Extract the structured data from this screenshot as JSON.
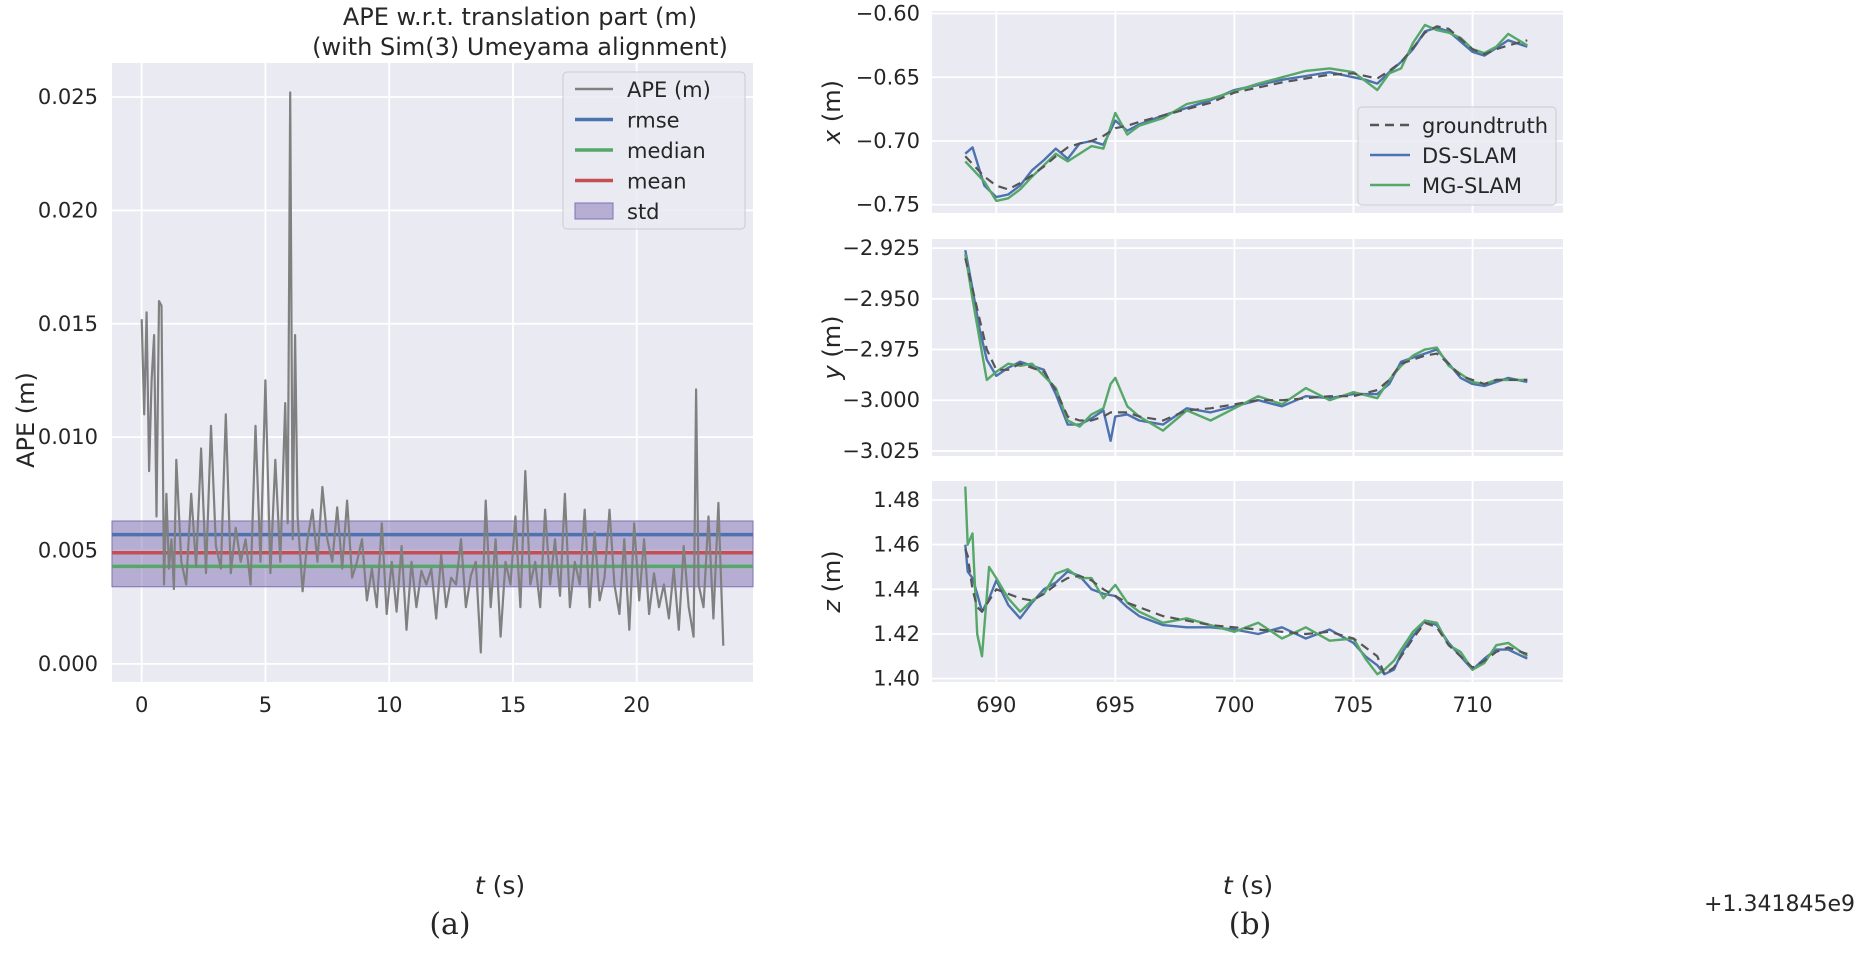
{
  "figure": {
    "panel_a_label": "(a)",
    "panel_b_label": "(b)"
  },
  "chart_data": [
    {
      "type": "line",
      "title": "APE w.r.t. translation part (m)",
      "subtitle": "(with Sim(3) Umeyama alignment)",
      "xlabel_italic": "t",
      "xlabel_unit": " (s)",
      "ylabel": "APE (m)",
      "xlim": [
        -1.2,
        24.7
      ],
      "ylim": [
        -0.0008,
        0.0265
      ],
      "x_ticks": [
        0,
        5,
        10,
        15,
        20
      ],
      "y_ticks": [
        0.0,
        0.005,
        0.01,
        0.015,
        0.02,
        0.025
      ],
      "y_tick_labels": [
        "0.000",
        "0.005",
        "0.010",
        "0.015",
        "0.020",
        "0.025"
      ],
      "grid": true,
      "legend_position": "top-right",
      "legend": [
        "APE (m)",
        "rmse",
        "median",
        "mean",
        "std"
      ],
      "colors": {
        "ape": "#808080",
        "rmse": "#4c72b0",
        "median": "#55a868",
        "mean": "#c44e52",
        "std": "#8172b2"
      },
      "stats": {
        "rmse": 0.0057,
        "median": 0.0043,
        "mean": 0.0049,
        "std_low": 0.0034,
        "std_high": 0.0063
      },
      "series_ape": {
        "x": [
          0.0,
          0.1,
          0.2,
          0.3,
          0.4,
          0.5,
          0.6,
          0.7,
          0.8,
          0.9,
          1.0,
          1.1,
          1.2,
          1.3,
          1.4,
          1.6,
          1.8,
          2.0,
          2.2,
          2.4,
          2.6,
          2.8,
          3.0,
          3.2,
          3.4,
          3.6,
          3.8,
          4.0,
          4.2,
          4.4,
          4.6,
          4.8,
          5.0,
          5.2,
          5.4,
          5.6,
          5.8,
          5.9,
          6.0,
          6.1,
          6.2,
          6.3,
          6.5,
          6.7,
          6.9,
          7.1,
          7.3,
          7.5,
          7.7,
          7.9,
          8.1,
          8.3,
          8.5,
          8.7,
          8.9,
          9.1,
          9.3,
          9.5,
          9.7,
          9.9,
          10.1,
          10.3,
          10.5,
          10.7,
          10.9,
          11.1,
          11.3,
          11.5,
          11.7,
          11.9,
          12.1,
          12.3,
          12.5,
          12.7,
          12.9,
          13.1,
          13.3,
          13.5,
          13.7,
          13.9,
          14.1,
          14.3,
          14.5,
          14.7,
          14.9,
          15.1,
          15.3,
          15.5,
          15.7,
          15.9,
          16.1,
          16.3,
          16.5,
          16.7,
          16.9,
          17.1,
          17.3,
          17.5,
          17.7,
          17.9,
          18.1,
          18.3,
          18.5,
          18.7,
          18.9,
          19.1,
          19.3,
          19.5,
          19.7,
          19.9,
          20.1,
          20.3,
          20.5,
          20.7,
          20.9,
          21.1,
          21.3,
          21.5,
          21.7,
          21.9,
          22.1,
          22.3,
          22.4,
          22.5,
          22.7,
          22.9,
          23.1,
          23.3,
          23.5
        ],
        "y": [
          0.0152,
          0.011,
          0.0155,
          0.0085,
          0.0125,
          0.0145,
          0.0065,
          0.016,
          0.0158,
          0.0035,
          0.0075,
          0.0042,
          0.0055,
          0.0033,
          0.009,
          0.0045,
          0.0035,
          0.0075,
          0.0043,
          0.0095,
          0.004,
          0.0105,
          0.0052,
          0.0042,
          0.011,
          0.004,
          0.006,
          0.0045,
          0.0055,
          0.0035,
          0.0105,
          0.0045,
          0.0125,
          0.004,
          0.009,
          0.0045,
          0.0115,
          0.0062,
          0.0252,
          0.0055,
          0.0145,
          0.0065,
          0.0032,
          0.0055,
          0.0068,
          0.0045,
          0.0078,
          0.0055,
          0.0045,
          0.0069,
          0.0042,
          0.0072,
          0.0038,
          0.0045,
          0.0055,
          0.0028,
          0.0042,
          0.0025,
          0.0062,
          0.0022,
          0.0045,
          0.0023,
          0.0052,
          0.0015,
          0.0045,
          0.0025,
          0.0041,
          0.0035,
          0.0042,
          0.002,
          0.0048,
          0.0025,
          0.0038,
          0.0035,
          0.0055,
          0.0025,
          0.0039,
          0.0045,
          0.0005,
          0.0072,
          0.0025,
          0.0055,
          0.0012,
          0.0045,
          0.0035,
          0.0065,
          0.0025,
          0.0085,
          0.0035,
          0.0045,
          0.0025,
          0.0068,
          0.0035,
          0.0055,
          0.003,
          0.0075,
          0.0025,
          0.0045,
          0.0035,
          0.0068,
          0.0025,
          0.0058,
          0.0028,
          0.0038,
          0.0068,
          0.0035,
          0.0022,
          0.0055,
          0.0015,
          0.0062,
          0.0028,
          0.0055,
          0.0022,
          0.004,
          0.0025,
          0.0035,
          0.002,
          0.0042,
          0.0015,
          0.0052,
          0.0025,
          0.0012,
          0.0121,
          0.0035,
          0.0025,
          0.0065,
          0.002,
          0.0071,
          0.0008
        ]
      }
    },
    {
      "type": "line",
      "xlabel_italic": "t",
      "xlabel_unit": " (s)",
      "x_offset_label": "+1.341845e9",
      "xlim": [
        687.3,
        713.8
      ],
      "x_ticks": [
        690,
        695,
        700,
        705,
        710
      ],
      "grid": true,
      "legend_position": "right",
      "legend": [
        "groundtruth",
        "DS-SLAM",
        "MG-SLAM"
      ],
      "colors": {
        "groundtruth": "#555555",
        "DS-SLAM": "#4c72b0",
        "MG-SLAM": "#55a868"
      },
      "subplots": [
        {
          "axis": "x",
          "ylabel_italic": "x",
          "ylabel_unit": " (m)",
          "ylim": [
            -0.7565,
            -0.598
          ],
          "y_ticks": [
            -0.75,
            -0.7,
            -0.65,
            -0.6
          ],
          "y_tick_labels": [
            "−0.75",
            "−0.70",
            "−0.65",
            "−0.60"
          ],
          "x": [
            688.7,
            689.0,
            689.5,
            690.0,
            690.5,
            691.0,
            691.5,
            692.0,
            692.5,
            693.0,
            693.5,
            694.0,
            694.5,
            695.0,
            695.5,
            696.0,
            697.0,
            698.0,
            699.0,
            700.0,
            701.0,
            702.0,
            703.0,
            704.0,
            705.0,
            705.5,
            706.0,
            706.5,
            707.0,
            707.5,
            708.0,
            708.5,
            709.0,
            709.5,
            710.0,
            710.5,
            711.0,
            711.5,
            712.3
          ],
          "groundtruth": [
            -0.712,
            -0.718,
            -0.728,
            -0.735,
            -0.738,
            -0.733,
            -0.727,
            -0.72,
            -0.712,
            -0.705,
            -0.702,
            -0.7,
            -0.696,
            -0.69,
            -0.688,
            -0.685,
            -0.68,
            -0.675,
            -0.67,
            -0.662,
            -0.658,
            -0.654,
            -0.651,
            -0.648,
            -0.647,
            -0.649,
            -0.651,
            -0.645,
            -0.638,
            -0.627,
            -0.615,
            -0.61,
            -0.612,
            -0.62,
            -0.628,
            -0.632,
            -0.628,
            -0.625,
            -0.621
          ],
          "ds_slam": [
            -0.71,
            -0.705,
            -0.735,
            -0.744,
            -0.742,
            -0.735,
            -0.723,
            -0.715,
            -0.706,
            -0.714,
            -0.702,
            -0.7,
            -0.703,
            -0.684,
            -0.692,
            -0.687,
            -0.68,
            -0.674,
            -0.668,
            -0.66,
            -0.656,
            -0.652,
            -0.649,
            -0.646,
            -0.65,
            -0.652,
            -0.655,
            -0.646,
            -0.638,
            -0.628,
            -0.614,
            -0.611,
            -0.614,
            -0.622,
            -0.63,
            -0.633,
            -0.627,
            -0.621,
            -0.626
          ],
          "mg_slam": [
            -0.716,
            -0.722,
            -0.732,
            -0.747,
            -0.745,
            -0.738,
            -0.728,
            -0.719,
            -0.71,
            -0.716,
            -0.71,
            -0.704,
            -0.706,
            -0.678,
            -0.695,
            -0.688,
            -0.682,
            -0.671,
            -0.667,
            -0.661,
            -0.655,
            -0.65,
            -0.645,
            -0.643,
            -0.646,
            -0.653,
            -0.66,
            -0.647,
            -0.643,
            -0.623,
            -0.609,
            -0.613,
            -0.615,
            -0.619,
            -0.628,
            -0.631,
            -0.626,
            -0.616,
            -0.625
          ]
        },
        {
          "axis": "y",
          "ylabel_italic": "y",
          "ylabel_unit": " (m)",
          "ylim": [
            -3.0275,
            -2.9205
          ],
          "y_ticks": [
            -3.025,
            -3.0,
            -2.975,
            -2.95,
            -2.925
          ],
          "y_tick_labels": [
            "−3.025",
            "−3.000",
            "−2.975",
            "−2.950",
            "−2.925"
          ],
          "x": [
            688.7,
            689.0,
            689.3,
            689.6,
            690.0,
            690.5,
            691.0,
            691.5,
            692.0,
            692.5,
            693.0,
            693.5,
            694.0,
            694.5,
            694.8,
            695.0,
            695.5,
            696.0,
            697.0,
            698.0,
            699.0,
            700.0,
            701.0,
            702.0,
            703.0,
            704.0,
            705.0,
            706.0,
            706.5,
            707.0,
            707.5,
            708.0,
            708.5,
            709.0,
            709.5,
            710.0,
            710.5,
            711.0,
            711.5,
            712.3
          ],
          "groundtruth": [
            -2.93,
            -2.945,
            -2.96,
            -2.975,
            -2.985,
            -2.985,
            -2.982,
            -2.984,
            -2.986,
            -2.995,
            -3.008,
            -3.01,
            -3.01,
            -3.008,
            -3.006,
            -3.006,
            -3.006,
            -3.008,
            -3.01,
            -3.005,
            -3.004,
            -3.002,
            -3.0,
            -3.0,
            -2.999,
            -2.998,
            -2.998,
            -2.995,
            -2.99,
            -2.982,
            -2.98,
            -2.978,
            -2.977,
            -2.982,
            -2.988,
            -2.99,
            -2.992,
            -2.99,
            -2.99,
            -2.99
          ],
          "ds_slam": [
            -2.926,
            -2.945,
            -2.965,
            -2.98,
            -2.988,
            -2.984,
            -2.981,
            -2.983,
            -2.985,
            -2.997,
            -3.012,
            -3.012,
            -3.009,
            -3.005,
            -3.02,
            -3.008,
            -3.007,
            -3.01,
            -3.012,
            -3.004,
            -3.006,
            -3.003,
            -3.0,
            -3.003,
            -2.998,
            -2.999,
            -2.997,
            -2.997,
            -2.992,
            -2.981,
            -2.979,
            -2.977,
            -2.975,
            -2.982,
            -2.989,
            -2.992,
            -2.993,
            -2.991,
            -2.989,
            -2.991
          ],
          "mg_slam": [
            -2.928,
            -2.95,
            -2.97,
            -2.99,
            -2.986,
            -2.982,
            -2.983,
            -2.982,
            -2.988,
            -2.994,
            -3.01,
            -3.013,
            -3.007,
            -3.004,
            -2.992,
            -2.989,
            -3.003,
            -3.008,
            -3.015,
            -3.005,
            -3.01,
            -3.004,
            -2.998,
            -3.002,
            -2.994,
            -3.0,
            -2.996,
            -2.999,
            -2.99,
            -2.983,
            -2.978,
            -2.975,
            -2.974,
            -2.983,
            -2.987,
            -2.991,
            -2.992,
            -2.99,
            -2.99,
            -2.99
          ]
        },
        {
          "axis": "z",
          "ylabel_italic": "z",
          "ylabel_unit": " (m)",
          "ylim": [
            1.3985,
            1.4885
          ],
          "y_ticks": [
            1.4,
            1.42,
            1.44,
            1.46,
            1.48
          ],
          "y_tick_labels": [
            "1.40",
            "1.42",
            "1.44",
            "1.46",
            "1.48"
          ],
          "x": [
            688.7,
            688.8,
            689.0,
            689.2,
            689.4,
            689.7,
            690.0,
            690.5,
            691.0,
            691.5,
            692.0,
            692.5,
            693.0,
            693.5,
            694.0,
            694.5,
            695.0,
            695.5,
            696.0,
            697.0,
            698.0,
            699.0,
            700.0,
            701.0,
            702.0,
            703.0,
            704.0,
            705.0,
            705.5,
            706.0,
            706.3,
            706.7,
            707.0,
            707.5,
            708.0,
            708.5,
            709.0,
            709.5,
            710.0,
            710.5,
            711.0,
            711.5,
            712.3
          ],
          "groundtruth": [
            1.458,
            1.455,
            1.44,
            1.432,
            1.43,
            1.435,
            1.44,
            1.438,
            1.436,
            1.435,
            1.438,
            1.442,
            1.445,
            1.446,
            1.444,
            1.44,
            1.437,
            1.434,
            1.432,
            1.428,
            1.426,
            1.424,
            1.423,
            1.422,
            1.421,
            1.42,
            1.421,
            1.418,
            1.414,
            1.41,
            1.402,
            1.405,
            1.41,
            1.418,
            1.425,
            1.423,
            1.415,
            1.41,
            1.405,
            1.408,
            1.412,
            1.414,
            1.411
          ],
          "ds_slam": [
            1.46,
            1.448,
            1.445,
            1.438,
            1.43,
            1.436,
            1.444,
            1.433,
            1.427,
            1.434,
            1.44,
            1.443,
            1.448,
            1.446,
            1.44,
            1.438,
            1.437,
            1.432,
            1.428,
            1.424,
            1.423,
            1.423,
            1.422,
            1.42,
            1.423,
            1.418,
            1.422,
            1.416,
            1.41,
            1.406,
            1.402,
            1.404,
            1.411,
            1.419,
            1.426,
            1.424,
            1.416,
            1.41,
            1.404,
            1.409,
            1.413,
            1.413,
            1.409
          ],
          "mg_slam": [
            1.486,
            1.46,
            1.465,
            1.42,
            1.41,
            1.45,
            1.445,
            1.436,
            1.43,
            1.435,
            1.438,
            1.447,
            1.449,
            1.445,
            1.445,
            1.436,
            1.442,
            1.434,
            1.43,
            1.425,
            1.427,
            1.424,
            1.421,
            1.425,
            1.418,
            1.423,
            1.417,
            1.418,
            1.409,
            1.402,
            1.404,
            1.408,
            1.413,
            1.421,
            1.426,
            1.425,
            1.415,
            1.412,
            1.404,
            1.407,
            1.415,
            1.416,
            1.41
          ]
        }
      ]
    }
  ]
}
